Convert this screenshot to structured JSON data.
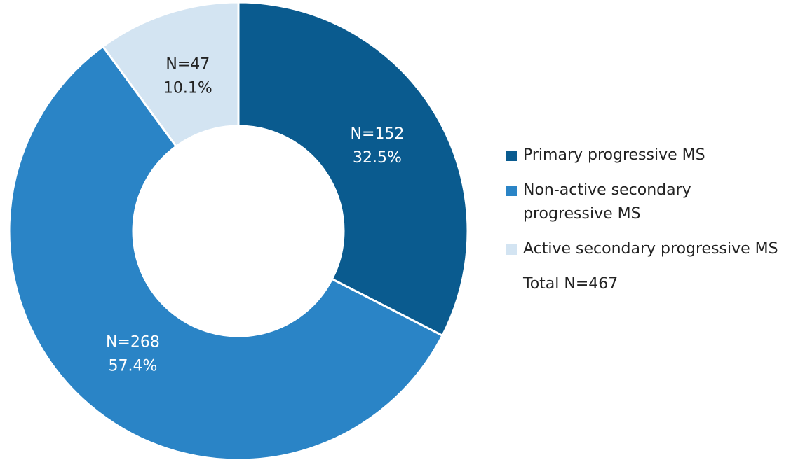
{
  "chart_data": {
    "type": "donut",
    "categories": [
      "Primary progressive MS",
      "Non-active secondary progressive MS",
      "Active secondary progressive MS"
    ],
    "values": [
      152,
      268,
      47
    ],
    "value_labels": [
      "N=152",
      "N=268",
      "N=47"
    ],
    "percent_values": [
      32.5,
      57.4,
      10.1
    ],
    "percent_labels": [
      "32.5%",
      "57.4%",
      "10.1%"
    ],
    "colors": [
      "#0a5b8f",
      "#2a84c6",
      "#d3e4f2"
    ],
    "annotation": "Total N=467",
    "legend": "right"
  }
}
